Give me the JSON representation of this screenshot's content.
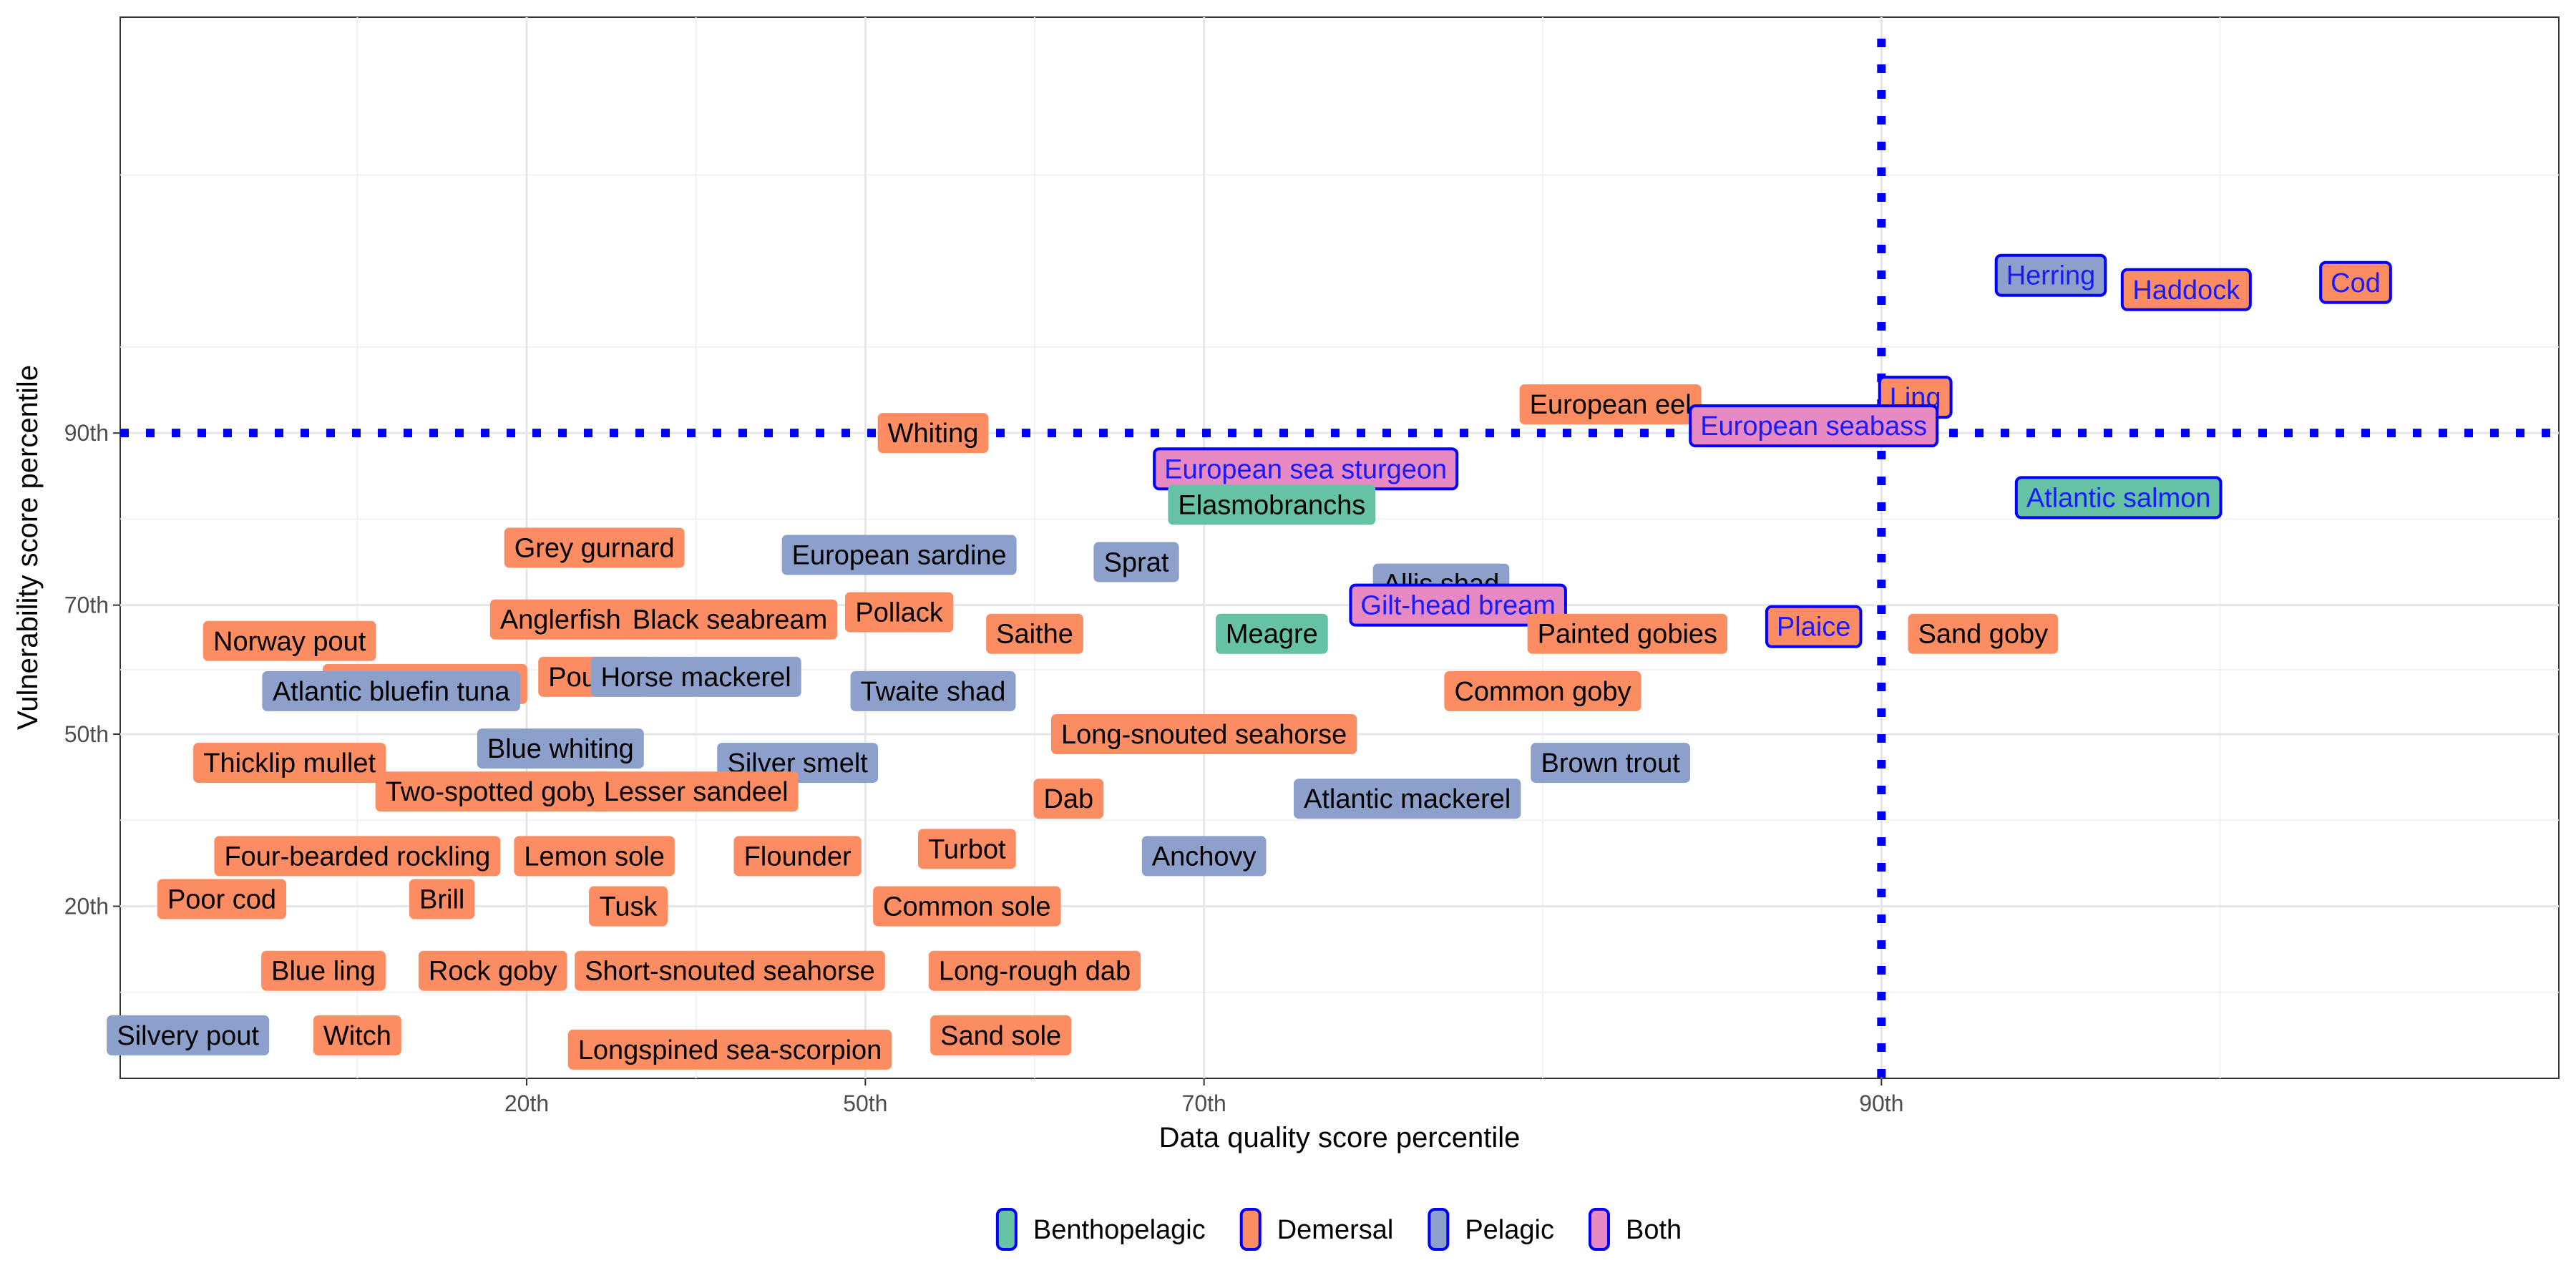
{
  "chart_data": {
    "type": "scatter",
    "xlabel": "Data quality score percentile",
    "ylabel": "Vulnerability score percentile",
    "xlim": [
      -1.2,
      6.0
    ],
    "ylim": [
      -1.2,
      6.2
    ],
    "x_ticks": [
      {
        "value": 0.0,
        "label": "20th"
      },
      {
        "value": 1.0,
        "label": "50th"
      },
      {
        "value": 2.0,
        "label": "70th"
      },
      {
        "value": 4.0,
        "label": "90th"
      }
    ],
    "y_ticks": [
      {
        "value": 0.0,
        "label": "20th"
      },
      {
        "value": 1.2,
        "label": "50th"
      },
      {
        "value": 2.1,
        "label": "70th"
      },
      {
        "value": 3.3,
        "label": "90th"
      }
    ],
    "threshold_x": 4.0,
    "threshold_y": 3.3,
    "threshold_color": "#0000ff",
    "legend": [
      {
        "label": "Benthopelagic",
        "color": "#66c2a5"
      },
      {
        "label": "Demersal",
        "color": "#fc8d62"
      },
      {
        "label": "Pelagic",
        "color": "#8da0cb"
      },
      {
        "label": "Both",
        "color": "#e78ac3"
      }
    ],
    "points": [
      {
        "label": "Herring",
        "x": 4.5,
        "y": 4.4,
        "group": "Pelagic",
        "highlight": true
      },
      {
        "label": "Haddock",
        "x": 4.9,
        "y": 4.3,
        "group": "Demersal",
        "highlight": true
      },
      {
        "label": "Cod",
        "x": 5.4,
        "y": 4.35,
        "group": "Demersal",
        "highlight": true
      },
      {
        "label": "Ling",
        "x": 4.1,
        "y": 3.55,
        "group": "Demersal",
        "highlight": true
      },
      {
        "label": "European eel",
        "x": 3.2,
        "y": 3.5,
        "group": "Demersal",
        "highlight": false
      },
      {
        "label": "European seabass",
        "x": 3.8,
        "y": 3.35,
        "group": "Both",
        "highlight": true
      },
      {
        "label": "Whiting",
        "x": 1.2,
        "y": 3.3,
        "group": "Demersal",
        "highlight": false
      },
      {
        "label": "European sea sturgeon",
        "x": 2.3,
        "y": 3.05,
        "group": "Both",
        "highlight": true
      },
      {
        "label": "Elasmobranchs",
        "x": 2.2,
        "y": 2.8,
        "group": "Benthopelagic",
        "highlight": false
      },
      {
        "label": "Atlantic salmon",
        "x": 4.7,
        "y": 2.85,
        "group": "Benthopelagic",
        "highlight": true
      },
      {
        "label": "Grey gurnard",
        "x": 0.2,
        "y": 2.5,
        "group": "Demersal",
        "highlight": false
      },
      {
        "label": "European sardine",
        "x": 1.1,
        "y": 2.45,
        "group": "Pelagic",
        "highlight": false
      },
      {
        "label": "Sprat",
        "x": 1.8,
        "y": 2.4,
        "group": "Pelagic",
        "highlight": false
      },
      {
        "label": "Allis shad",
        "x": 2.7,
        "y": 2.25,
        "group": "Pelagic",
        "highlight": false
      },
      {
        "label": "Gilt-head bream",
        "x": 2.75,
        "y": 2.1,
        "group": "Both",
        "highlight": true
      },
      {
        "label": "Anglerfish",
        "x": 0.1,
        "y": 2.0,
        "group": "Demersal",
        "highlight": false
      },
      {
        "label": "Black seabream",
        "x": 0.6,
        "y": 2.0,
        "group": "Demersal",
        "highlight": false
      },
      {
        "label": "Pollack",
        "x": 1.1,
        "y": 2.05,
        "group": "Demersal",
        "highlight": false
      },
      {
        "label": "Saithe",
        "x": 1.5,
        "y": 1.9,
        "group": "Demersal",
        "highlight": false
      },
      {
        "label": "Meagre",
        "x": 2.2,
        "y": 1.9,
        "group": "Benthopelagic",
        "highlight": false
      },
      {
        "label": "Painted gobies",
        "x": 3.25,
        "y": 1.9,
        "group": "Demersal",
        "highlight": false
      },
      {
        "label": "Plaice",
        "x": 3.8,
        "y": 1.95,
        "group": "Demersal",
        "highlight": true
      },
      {
        "label": "Sand goby",
        "x": 4.3,
        "y": 1.9,
        "group": "Demersal",
        "highlight": false
      },
      {
        "label": "Norway pout",
        "x": -0.7,
        "y": 1.85,
        "group": "Demersal",
        "highlight": false
      },
      {
        "label": "European hake",
        "x": -0.3,
        "y": 1.55,
        "group": "Demersal",
        "highlight": false
      },
      {
        "label": "Atlantic bluefin tuna",
        "x": -0.4,
        "y": 1.5,
        "group": "Pelagic",
        "highlight": false
      },
      {
        "label": "Pouting",
        "x": 0.2,
        "y": 1.6,
        "group": "Demersal",
        "highlight": false
      },
      {
        "label": "Horse mackerel",
        "x": 0.5,
        "y": 1.6,
        "group": "Pelagic",
        "highlight": false
      },
      {
        "label": "Twaite shad",
        "x": 1.2,
        "y": 1.5,
        "group": "Pelagic",
        "highlight": false
      },
      {
        "label": "Common goby",
        "x": 3.0,
        "y": 1.5,
        "group": "Demersal",
        "highlight": false
      },
      {
        "label": "Long-snouted seahorse",
        "x": 2.0,
        "y": 1.2,
        "group": "Demersal",
        "highlight": false
      },
      {
        "label": "Blue whiting",
        "x": 0.1,
        "y": 1.1,
        "group": "Pelagic",
        "highlight": false
      },
      {
        "label": "Silver smelt",
        "x": 0.8,
        "y": 1.0,
        "group": "Pelagic",
        "highlight": false
      },
      {
        "label": "Brown trout",
        "x": 3.2,
        "y": 1.0,
        "group": "Pelagic",
        "highlight": false
      },
      {
        "label": "Thicklip mullet",
        "x": -0.7,
        "y": 1.0,
        "group": "Demersal",
        "highlight": false
      },
      {
        "label": "Two-spotted goby",
        "x": -0.1,
        "y": 0.8,
        "group": "Demersal",
        "highlight": false
      },
      {
        "label": "Lesser sandeel",
        "x": 0.5,
        "y": 0.8,
        "group": "Demersal",
        "highlight": false
      },
      {
        "label": "Dab",
        "x": 1.6,
        "y": 0.75,
        "group": "Demersal",
        "highlight": false
      },
      {
        "label": "Atlantic mackerel",
        "x": 2.6,
        "y": 0.75,
        "group": "Pelagic",
        "highlight": false
      },
      {
        "label": "Four-bearded rockling",
        "x": -0.5,
        "y": 0.35,
        "group": "Demersal",
        "highlight": false
      },
      {
        "label": "Lemon sole",
        "x": 0.2,
        "y": 0.35,
        "group": "Demersal",
        "highlight": false
      },
      {
        "label": "Flounder",
        "x": 0.8,
        "y": 0.35,
        "group": "Demersal",
        "highlight": false
      },
      {
        "label": "Turbot",
        "x": 1.3,
        "y": 0.4,
        "group": "Demersal",
        "highlight": false
      },
      {
        "label": "Anchovy",
        "x": 2.0,
        "y": 0.35,
        "group": "Pelagic",
        "highlight": false
      },
      {
        "label": "Poor cod",
        "x": -0.9,
        "y": 0.05,
        "group": "Demersal",
        "highlight": false
      },
      {
        "label": "Brill",
        "x": -0.25,
        "y": 0.05,
        "group": "Demersal",
        "highlight": false
      },
      {
        "label": "Tusk",
        "x": 0.3,
        "y": 0.0,
        "group": "Demersal",
        "highlight": false
      },
      {
        "label": "Common sole",
        "x": 1.3,
        "y": 0.0,
        "group": "Demersal",
        "highlight": false
      },
      {
        "label": "Blue ling",
        "x": -0.6,
        "y": -0.45,
        "group": "Demersal",
        "highlight": false
      },
      {
        "label": "Rock goby",
        "x": -0.1,
        "y": -0.45,
        "group": "Demersal",
        "highlight": false
      },
      {
        "label": "Short-snouted seahorse",
        "x": 0.6,
        "y": -0.45,
        "group": "Demersal",
        "highlight": false
      },
      {
        "label": "Long-rough dab",
        "x": 1.5,
        "y": -0.45,
        "group": "Demersal",
        "highlight": false
      },
      {
        "label": "Silvery pout",
        "x": -1.0,
        "y": -0.9,
        "group": "Pelagic",
        "highlight": false
      },
      {
        "label": "Witch",
        "x": -0.5,
        "y": -0.9,
        "group": "Demersal",
        "highlight": false
      },
      {
        "label": "Sand sole",
        "x": 1.4,
        "y": -0.9,
        "group": "Demersal",
        "highlight": false
      },
      {
        "label": "Longspined sea-scorpion",
        "x": 0.6,
        "y": -1.0,
        "group": "Demersal",
        "highlight": false
      }
    ]
  }
}
